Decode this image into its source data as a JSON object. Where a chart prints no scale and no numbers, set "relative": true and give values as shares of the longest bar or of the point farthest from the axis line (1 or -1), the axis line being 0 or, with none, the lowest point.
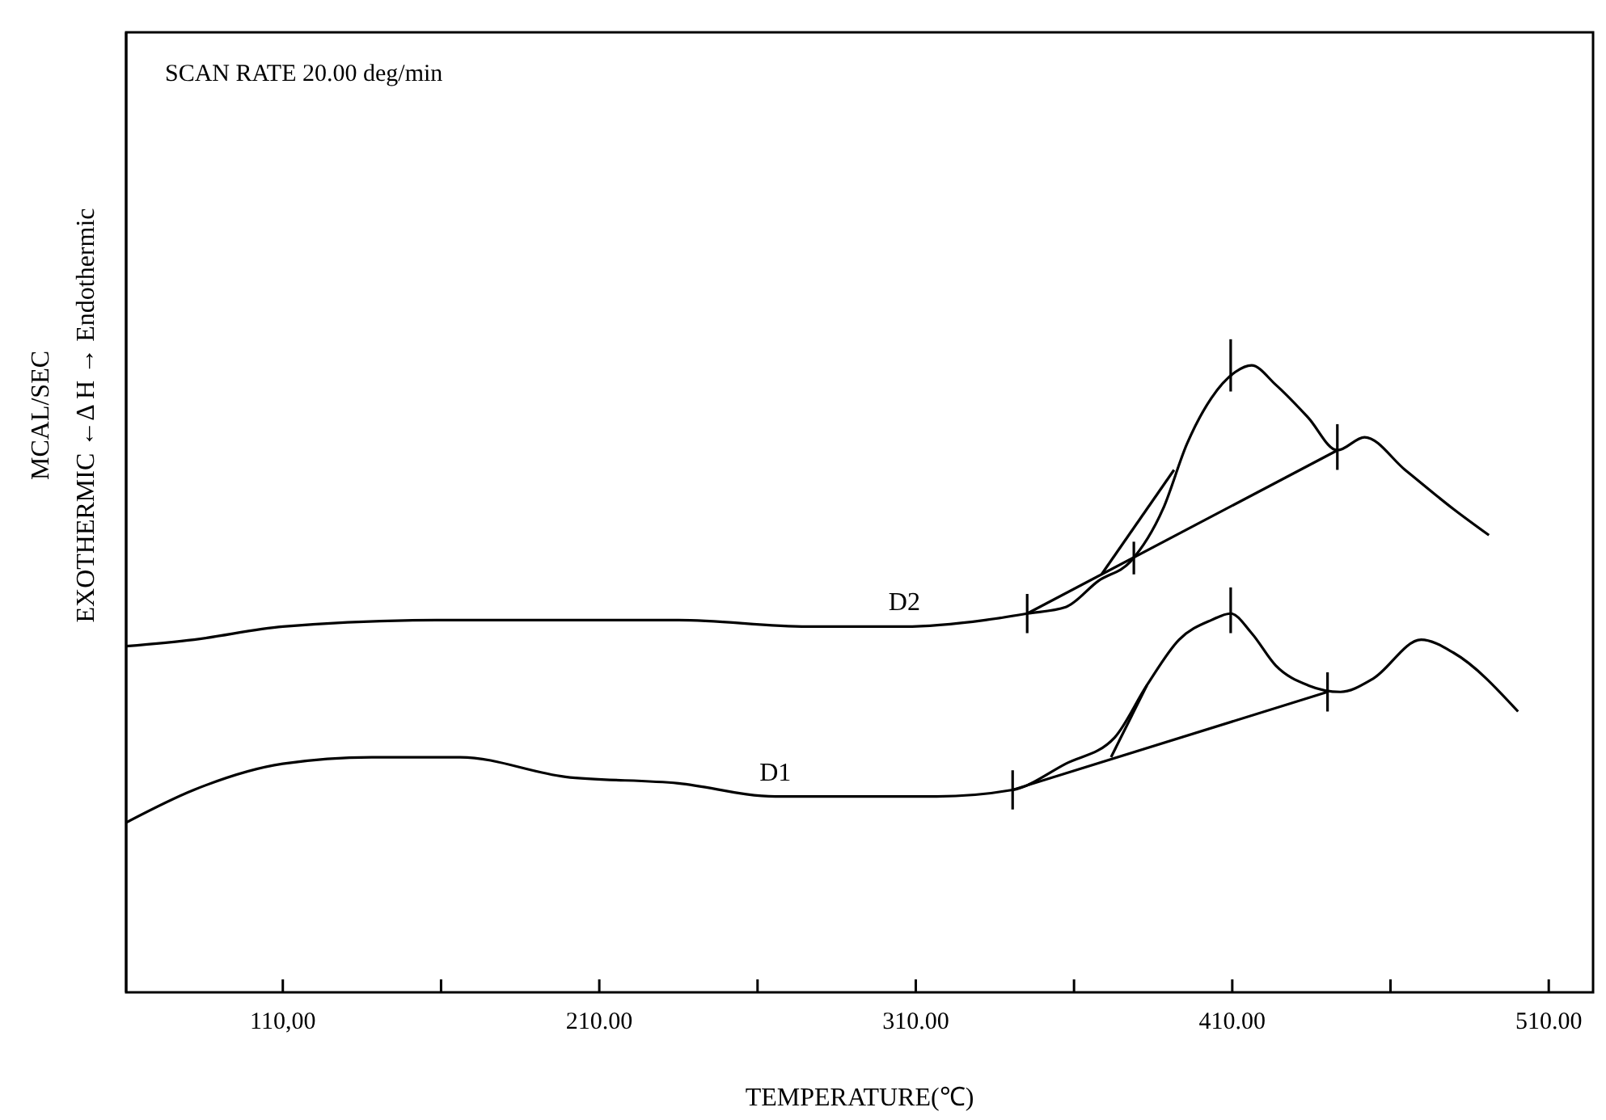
{
  "chart_data": {
    "type": "line",
    "relative": true,
    "xlabel": "TEMPERATURE(℃)",
    "ylabel": "MCAL/SEC\nEXOTHERMIC ←Δ H → Endothermic",
    "annotations": [
      "SCAN RATE 20.00 deg/min"
    ],
    "xlim": [
      60.5,
      524
    ],
    "xticks": [
      {
        "value": 110,
        "label": "110,00"
      },
      {
        "value": 160,
        "label": null
      },
      {
        "value": 210,
        "label": "210.00"
      },
      {
        "value": 260,
        "label": null
      },
      {
        "value": 310,
        "label": "310.00"
      },
      {
        "value": 360,
        "label": null
      },
      {
        "value": 410,
        "label": "410.00"
      },
      {
        "value": 460,
        "label": null
      },
      {
        "value": 510,
        "label": "510.00"
      }
    ],
    "grid": false,
    "legend": false,
    "color": "#000000",
    "series": [
      {
        "name": "D2",
        "x": [
          60.5,
          81.9,
          110,
          158.5,
          209.5,
          235,
          275.8,
          306.4,
          331.9,
          345.2,
          357.4,
          367.7,
          377.9,
          388.1,
          395.7,
          403.4,
          411,
          416.1,
          423.8,
          434,
          443.2,
          451.8,
          464.6,
          479.9,
          491.1
        ],
        "values": [
          0.53,
          0.54,
          0.56,
          0.57,
          0.57,
          0.57,
          0.56,
          0.56,
          0.57,
          0.58,
          0.59,
          0.63,
          0.66,
          0.74,
          0.84,
          0.91,
          0.95,
          0.96,
          0.93,
          0.88,
          0.83,
          0.85,
          0.8,
          0.74,
          0.7
        ]
      },
      {
        "name": "D1",
        "x": [
          60.5,
          81.9,
          110,
          138.1,
          166.1,
          199.3,
          235,
          265.6,
          286,
          316.6,
          340.6,
          357.4,
          372.8,
          383,
          393.2,
          403.4,
          409.5,
          416.1,
          423.8,
          434,
          444.2,
          454.4,
          469.7,
          479.9,
          500.3
        ],
        "values": [
          0.26,
          0.31,
          0.35,
          0.36,
          0.36,
          0.33,
          0.32,
          0.3,
          0.3,
          0.3,
          0.31,
          0.35,
          0.39,
          0.47,
          0.54,
          0.57,
          0.58,
          0.55,
          0.5,
          0.47,
          0.46,
          0.48,
          0.54,
          0.52,
          0.43
        ]
      },
      {
        "x": [
          345.2,
          443.2
        ],
        "values": [
          0.58,
          0.83
        ]
      },
      {
        "x": [
          368.7,
          391.6
        ],
        "values": [
          0.64,
          0.8
        ]
      },
      {
        "x": [
          340.6,
          440.1
        ],
        "values": [
          0.31,
          0.46
        ]
      },
      {
        "x": [
          371.7,
          383
        ],
        "values": [
          0.36,
          0.47
        ]
      },
      {
        "x": [
          345.2,
          345.2
        ],
        "values": [
          0.55,
          0.61
        ]
      },
      {
        "x": [
          378.9,
          378.9
        ],
        "values": [
          0.64,
          0.69
        ]
      },
      {
        "x": [
          409.5,
          409.5
        ],
        "values": [
          0.92,
          1
        ]
      },
      {
        "x": [
          443.2,
          443.2
        ],
        "values": [
          0.8,
          0.87
        ]
      },
      {
        "x": [
          340.6,
          340.6
        ],
        "values": [
          0.28,
          0.34
        ]
      },
      {
        "x": [
          409.5,
          409.5
        ],
        "values": [
          0.55,
          0.62
        ]
      },
      {
        "x": [
          440.1,
          440.1
        ],
        "values": [
          0.43,
          0.49
        ]
      }
    ]
  }
}
